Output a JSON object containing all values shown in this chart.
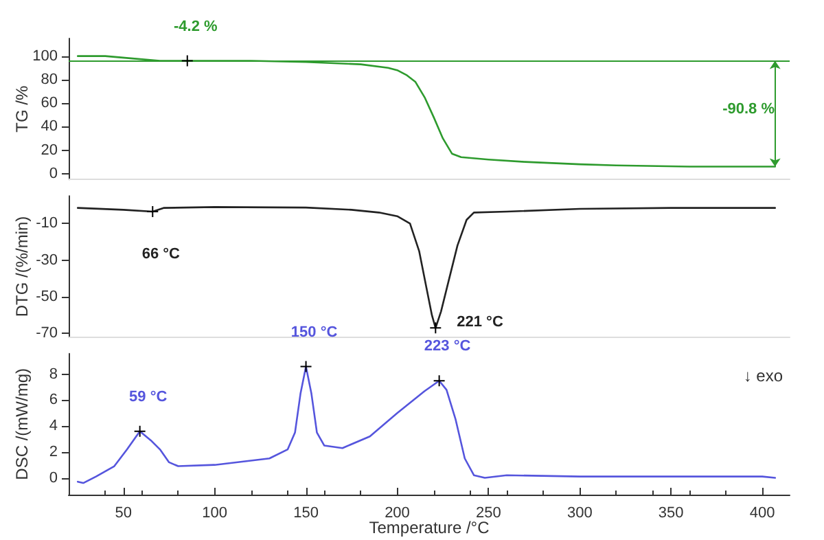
{
  "chart_data": [
    {
      "type": "line",
      "ylabel": "TG /%",
      "xlim": [
        20,
        415
      ],
      "ylim": [
        -5,
        115
      ],
      "yticks": [
        0,
        20,
        40,
        60,
        80,
        100
      ],
      "tick_labels": "y",
      "grid": false,
      "marker": "none",
      "color": "#2e9b2e",
      "x": [
        25,
        40,
        55,
        70,
        85,
        120,
        150,
        180,
        195,
        200,
        205,
        210,
        215,
        220,
        225,
        230,
        235,
        250,
        270,
        300,
        320,
        360,
        407
      ],
      "values": [
        100,
        100,
        98,
        96,
        96,
        96,
        95,
        93,
        90,
        88,
        84,
        78,
        65,
        48,
        30,
        17,
        14,
        12,
        10,
        8,
        7,
        6,
        6
      ],
      "ref_lines": [
        {
          "axis": "y",
          "value": 96,
          "color": "#2e9b2e"
        }
      ],
      "annotations": [
        {
          "text": "-4.2 %",
          "x": 85,
          "y": 96
        },
        "-90.8 %"
      ]
    },
    {
      "type": "line",
      "ylabel": "DTG /(%/min)",
      "xlim": [
        20,
        415
      ],
      "ylim": [
        -72,
        5
      ],
      "yticks": [
        -10,
        -30,
        -50,
        -70
      ],
      "tick_labels": "y",
      "grid": false,
      "marker": "none",
      "color": "#222222",
      "x": [
        25,
        50,
        66,
        72,
        100,
        150,
        175,
        190,
        200,
        207,
        212,
        216,
        219,
        221,
        224,
        228,
        233,
        238,
        242,
        260,
        300,
        350,
        407
      ],
      "values": [
        -1.5,
        -2.5,
        -3.5,
        -1.5,
        -1,
        -1.3,
        -2.5,
        -4,
        -6,
        -10,
        -25,
        -45,
        -60,
        -67,
        -58,
        -42,
        -22,
        -8,
        -4,
        -3.5,
        -2,
        -1.5,
        -1.5
      ],
      "annotations": [
        {
          "text": "66 °C",
          "x": 66,
          "y": -3.5
        },
        {
          "text": "221 °C",
          "x": 221,
          "y": -67
        }
      ]
    },
    {
      "type": "line",
      "ylabel": "DSC /(mW/mg)",
      "xlabel": "Temperature /°C",
      "xlim": [
        20,
        415
      ],
      "ylim": [
        -1.3,
        9.6
      ],
      "xticks": [
        50,
        100,
        150,
        200,
        250,
        300,
        350,
        400
      ],
      "yticks": [
        0,
        2,
        4,
        6,
        8
      ],
      "grid": false,
      "marker": "none",
      "color": "#5555dd",
      "x": [
        25,
        28,
        35,
        45,
        52,
        59,
        65,
        70,
        75,
        80,
        100,
        130,
        140,
        144,
        147,
        150,
        153,
        156,
        160,
        170,
        185,
        200,
        215,
        223,
        227,
        232,
        237,
        242,
        248,
        260,
        300,
        350,
        400,
        407
      ],
      "values": [
        -0.3,
        -0.4,
        0.1,
        0.9,
        2.2,
        3.6,
        2.9,
        2.2,
        1.2,
        0.9,
        1,
        1.5,
        2.2,
        3.5,
        6.5,
        8.6,
        6.5,
        3.5,
        2.5,
        2.3,
        3.2,
        5,
        6.7,
        7.5,
        6.8,
        4.5,
        1.5,
        0.2,
        0,
        0.2,
        0.1,
        0.1,
        0.1,
        0
      ],
      "annotations": [
        {
          "text": "59 °C",
          "x": 59,
          "y": 3.6
        },
        {
          "text": "150 °C",
          "x": 150,
          "y": 8.6
        },
        {
          "text": "223 °C",
          "x": 223,
          "y": 7.5
        },
        "↓ exo"
      ]
    }
  ]
}
